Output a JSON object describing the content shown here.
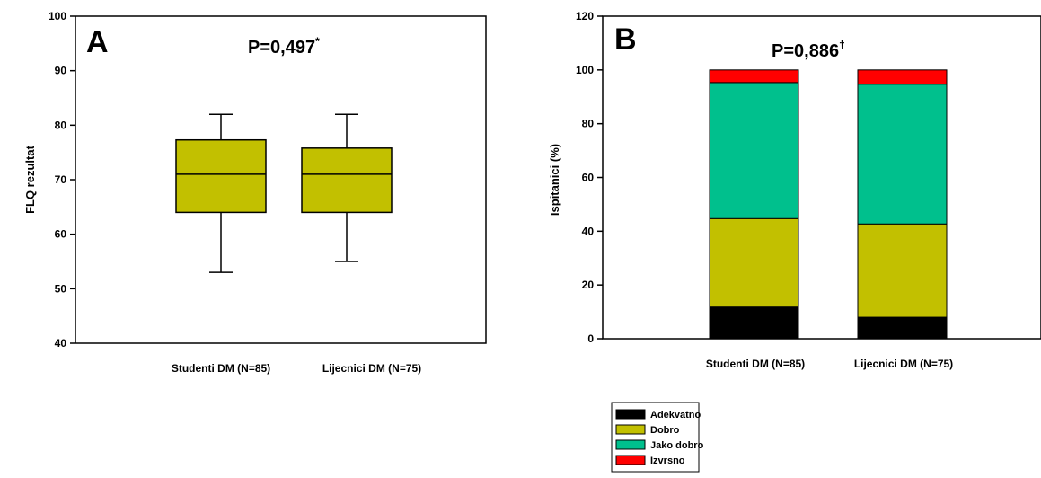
{
  "chart_data": [
    {
      "type": "box",
      "panel_label": "A",
      "annotation": "P=0,497",
      "annotation_sup": "*",
      "ylabel": "FLQ rezultat",
      "xlabel": "",
      "ylim": [
        40,
        100
      ],
      "yticks": [
        40,
        50,
        60,
        70,
        80,
        90,
        100
      ],
      "categories": [
        "Studenti DM (N=85)",
        "Lijecnici DM (N=75)"
      ],
      "boxes": [
        {
          "whisker_low": 53,
          "q1": 64,
          "median": 71,
          "q3": 77.3,
          "whisker_high": 82
        },
        {
          "whisker_low": 55,
          "q1": 64,
          "median": 71,
          "q3": 75.8,
          "whisker_high": 82
        }
      ],
      "color": "#c2c000",
      "grid": false
    },
    {
      "type": "stacked_bar",
      "panel_label": "B",
      "annotation": "P=0,886",
      "annotation_sup": "†",
      "ylabel": "Ispitanici (%)",
      "xlabel": "",
      "ylim": [
        0,
        120
      ],
      "yticks": [
        0,
        20,
        40,
        60,
        80,
        100,
        120
      ],
      "categories": [
        "Studenti DM (N=85)",
        "Lijecnici DM (N=75)"
      ],
      "series": [
        {
          "name": "Adekvatno",
          "color": "#000000",
          "values": [
            11.8,
            8.0
          ]
        },
        {
          "name": "Dobro",
          "color": "#c2c000",
          "values": [
            32.9,
            34.7
          ]
        },
        {
          "name": "Jako dobro",
          "color": "#00c08d",
          "values": [
            50.6,
            52.0
          ]
        },
        {
          "name": "Izvrsno",
          "color": "#ff0000",
          "values": [
            4.7,
            5.3
          ]
        }
      ],
      "legend_position": "bottom-left",
      "grid": false
    }
  ]
}
